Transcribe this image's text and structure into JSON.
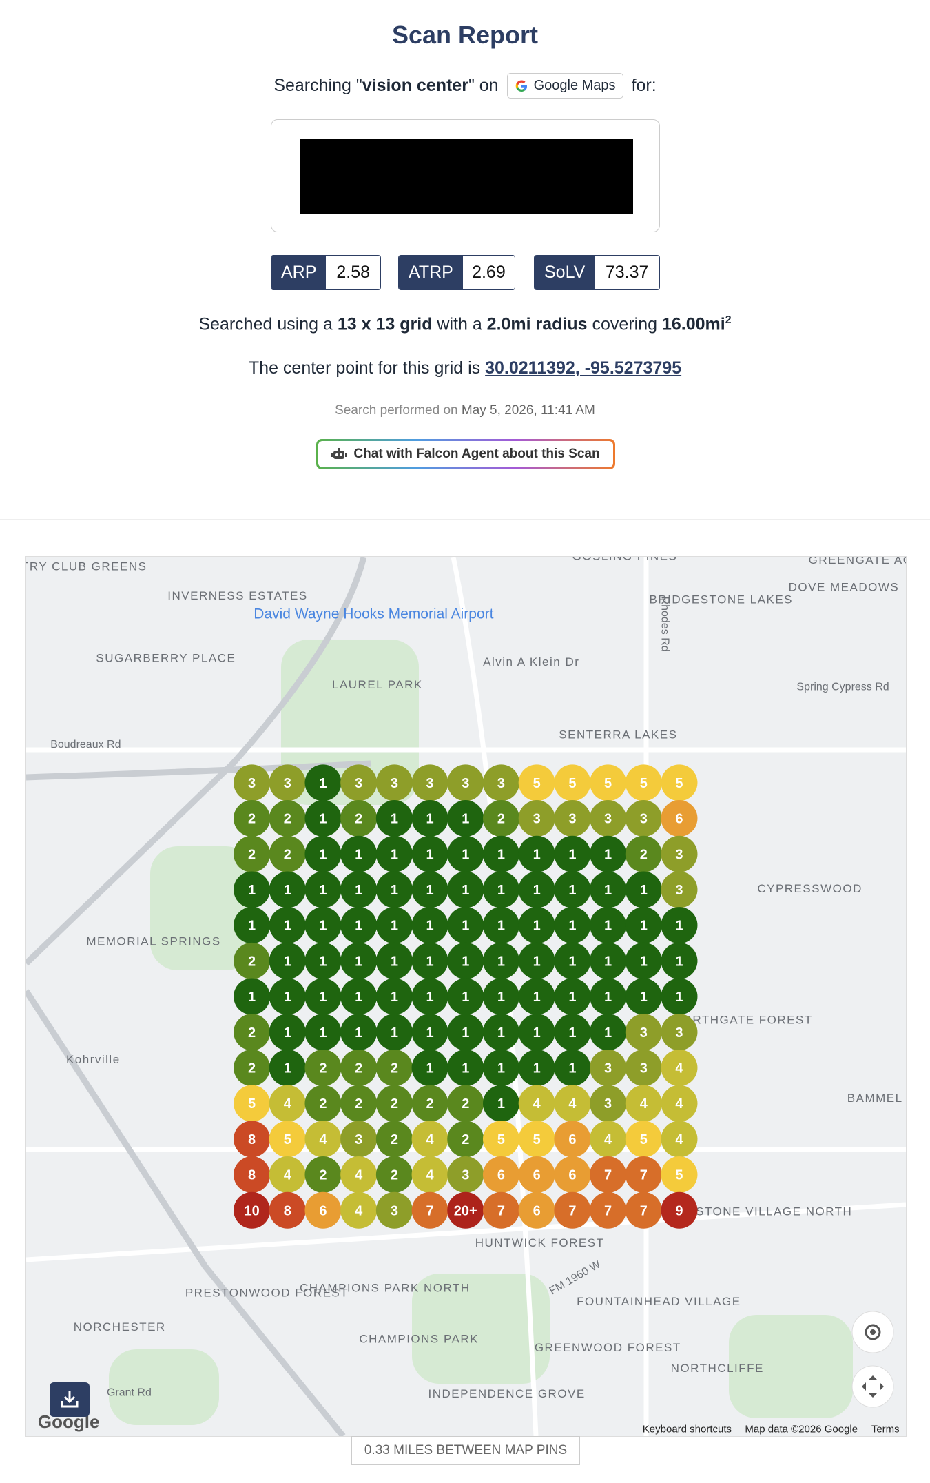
{
  "header": {
    "title": "Scan Report",
    "search_prefix": "Searching \"",
    "keyword": "vision center",
    "search_suffix": "\" on",
    "platform": "Google Maps",
    "for": "for:"
  },
  "metrics": [
    {
      "label": "ARP",
      "value": "2.58"
    },
    {
      "label": "ATRP",
      "value": "2.69"
    },
    {
      "label": "SoLV",
      "value": "73.37"
    }
  ],
  "summary": {
    "p1": "Searched using a ",
    "grid": "13 x 13 grid",
    "p2": " with a ",
    "radius": "2.0mi radius",
    "p3": " covering ",
    "area": "16.00mi",
    "area_exp": "2"
  },
  "center": {
    "text": "The center point for this grid is ",
    "coords": "30.0211392, -95.5273795"
  },
  "performed": {
    "text": "Search performed on ",
    "date": "May 5, 2026, 11:41 AM"
  },
  "chat_button": "Chat with Falcon Agent about this Scan",
  "grid": {
    "rows": [
      [
        3,
        3,
        1,
        3,
        3,
        3,
        3,
        3,
        5,
        5,
        5,
        5,
        5
      ],
      [
        2,
        2,
        1,
        2,
        1,
        1,
        1,
        2,
        3,
        3,
        3,
        3,
        6
      ],
      [
        2,
        2,
        1,
        1,
        1,
        1,
        1,
        1,
        1,
        1,
        1,
        2,
        3
      ],
      [
        1,
        1,
        1,
        1,
        1,
        1,
        1,
        1,
        1,
        1,
        1,
        1,
        3
      ],
      [
        1,
        1,
        1,
        1,
        1,
        1,
        1,
        1,
        1,
        1,
        1,
        1,
        1
      ],
      [
        2,
        1,
        1,
        1,
        1,
        1,
        1,
        1,
        1,
        1,
        1,
        1,
        1
      ],
      [
        1,
        1,
        1,
        1,
        1,
        1,
        1,
        1,
        1,
        1,
        1,
        1,
        1
      ],
      [
        2,
        1,
        1,
        1,
        1,
        1,
        1,
        1,
        1,
        1,
        1,
        3,
        3
      ],
      [
        2,
        1,
        2,
        2,
        2,
        1,
        1,
        1,
        1,
        1,
        3,
        3,
        4
      ],
      [
        5,
        4,
        2,
        2,
        2,
        2,
        2,
        1,
        4,
        4,
        3,
        4,
        4
      ],
      [
        8,
        5,
        4,
        3,
        2,
        4,
        2,
        5,
        5,
        6,
        4,
        5,
        4
      ],
      [
        8,
        4,
        2,
        4,
        2,
        4,
        3,
        6,
        6,
        6,
        7,
        7,
        5
      ],
      [
        10,
        8,
        6,
        4,
        3,
        7,
        "20+",
        7,
        6,
        7,
        7,
        7,
        9
      ]
    ],
    "colors": {
      "1": "#1f650f",
      "2": "#5a881e",
      "3": "#8e9e29",
      "4": "#c5bd35",
      "5": "#f4cb3b",
      "6": "#e89d33",
      "7": "#d76e29",
      "8": "#cb4a25",
      "9": "#b4281d",
      "10": "#b0261c",
      "20+": "#ad231b"
    }
  },
  "map": {
    "labels": [
      "COUNTRY CLUB GREENS",
      "INVERNESS ESTATES",
      "David Wayne Hooks Memorial Airport",
      "SUGARBERRY PLACE",
      "GOSLING PINES",
      "BRIDGESTONE LAKES",
      "DOVE MEADOWS",
      "GREENGATE ACRES",
      "LAUREL PARK",
      "SENTERRA LAKES",
      "Alvin A Klein Dr",
      "Spring Cypress Rd",
      "Boudreaux Rd",
      "Kohrville",
      "MEMORIAL SPRINGS",
      "CYPRESSWOOD",
      "NORTHGATE FOREST",
      "BAMMEL",
      "HUNTWICK FOREST",
      "PRESTONWOOD FOREST",
      "CHAMPIONS PARK NORTH",
      "FOUNTAINHEAD VILLAGE",
      "NORCHESTER",
      "CHAMPIONS PARK",
      "GREENWOOD FOREST",
      "NORTHCLIFFE",
      "INDEPENDENCE GROVE",
      "CORNERSTONE VILLAGE NORTH",
      "FM 1960 W",
      "Grant Rd",
      "Rhodes Rd"
    ],
    "attribution": [
      "Keyboard shortcuts",
      "Map data ©2026 Google",
      "Terms"
    ],
    "logo": "Google"
  },
  "footer": "0.33 MILES BETWEEN MAP PINS"
}
